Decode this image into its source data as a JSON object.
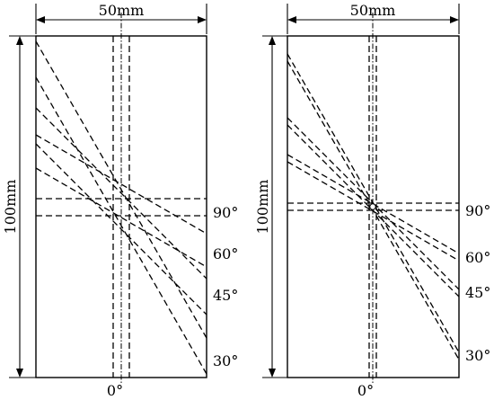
{
  "panels": [
    {
      "width_label": "50mm",
      "height_label": "100mm",
      "angle_labels": [
        "90°",
        "60°",
        "45°",
        "30°",
        "0°"
      ]
    },
    {
      "width_label": "50mm",
      "height_label": "100mm",
      "angle_labels": [
        "90°",
        "60°",
        "45°",
        "30°",
        "0°"
      ]
    }
  ]
}
